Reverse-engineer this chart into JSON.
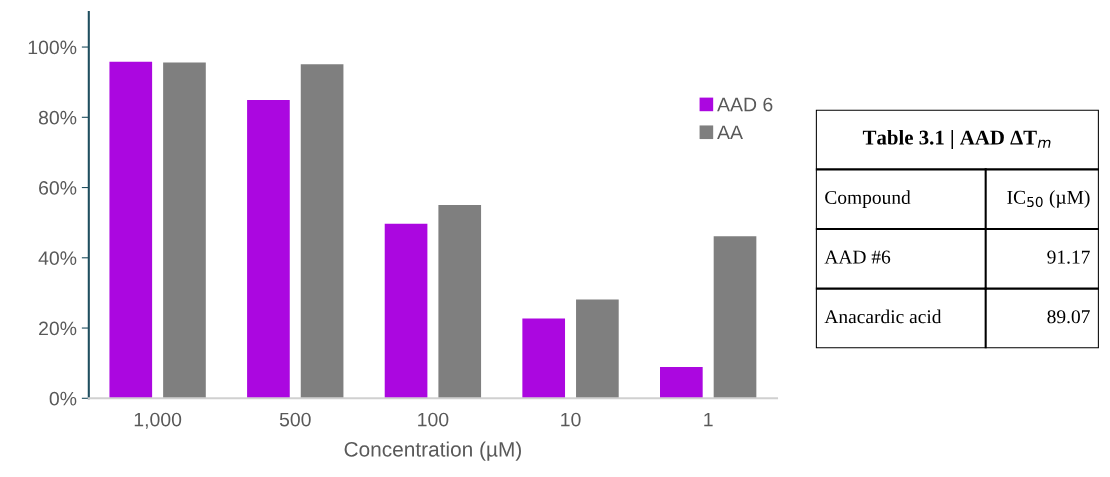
{
  "chart_data": [
    {
      "type": "bar",
      "xlabel": "Concentration (µM)",
      "categories": [
        "1,000",
        "500",
        "100",
        "10",
        "1"
      ],
      "series": [
        {
          "name": "AAD 6",
          "color": "#ab07e0",
          "values": [
            95.8,
            84.9,
            49.7,
            22.7,
            8.9
          ]
        },
        {
          "name": "AA",
          "color": "#7f7f7f",
          "values": [
            95.6,
            95.1,
            55.0,
            28.1,
            46.1
          ]
        }
      ],
      "ylim": [
        0,
        110
      ],
      "yticks": [
        {
          "value": 0,
          "label": "0%"
        },
        {
          "value": 20,
          "label": "20%"
        },
        {
          "value": 40,
          "label": "40%"
        },
        {
          "value": 60,
          "label": "60%"
        },
        {
          "value": 80,
          "label": "80%"
        },
        {
          "value": 100,
          "label": "100%"
        }
      ],
      "grid": false,
      "legend": "right"
    },
    {
      "type": "other",
      "title": "Table 3.1 | AAD ΔT$_{m}$",
      "annotations": [
        "Compound",
        "IC$_{50}$ (µM)",
        "AAD #6",
        "91.17",
        "Anacardic acid",
        "89.07"
      ]
    }
  ]
}
